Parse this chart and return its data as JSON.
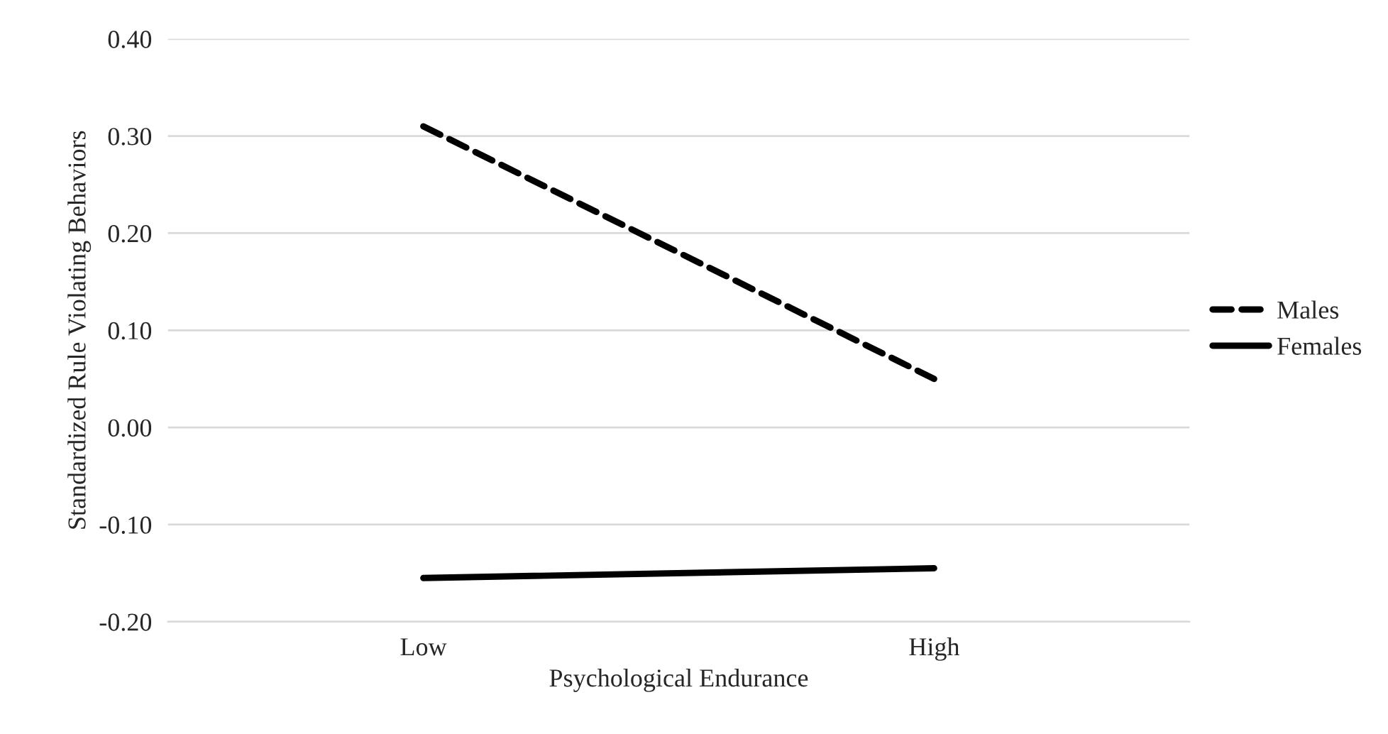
{
  "chart_data": {
    "type": "line",
    "xlabel": "Psychological Endurance",
    "ylabel": "Standardized Rule Violating Behaviors",
    "categories": [
      "Low",
      "High"
    ],
    "series": [
      {
        "name": "Males",
        "color": "#000000",
        "values": [
          0.31,
          0.05
        ],
        "line_style": "dashed"
      },
      {
        "name": "Females",
        "color": "#000000",
        "values": [
          -0.155,
          -0.145
        ],
        "line_style": "solid"
      }
    ],
    "ylim": [
      -0.2,
      0.4
    ],
    "yticks": [
      {
        "value": -0.2,
        "label": "-0.20"
      },
      {
        "value": -0.1,
        "label": "-0.10"
      },
      {
        "value": 0,
        "label": "0.00"
      },
      {
        "value": 0.1,
        "label": "0.10"
      },
      {
        "value": 0.2,
        "label": "0.20"
      },
      {
        "value": 0.3,
        "label": "0.30"
      },
      {
        "value": 0.4,
        "label": "0.40"
      }
    ],
    "grid": "y",
    "legend": "right",
    "marker": "none"
  }
}
